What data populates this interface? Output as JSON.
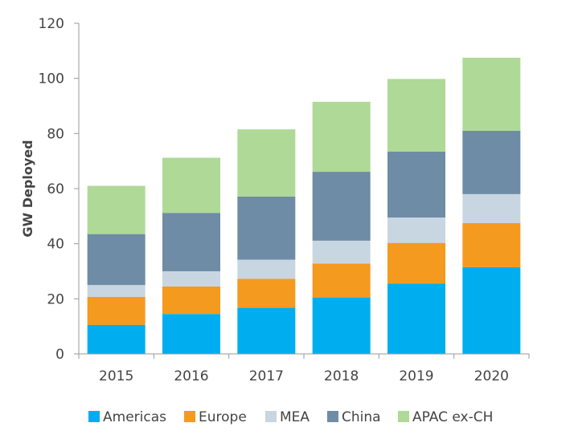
{
  "chart_data": {
    "type": "bar",
    "stacked": true,
    "ylabel": "GW Deployed",
    "xlabel": "",
    "ylim": [
      0,
      120
    ],
    "yticks": [
      0,
      20,
      40,
      60,
      80,
      100,
      120
    ],
    "grid": false,
    "legend_position": "bottom",
    "categories": [
      "2015",
      "2016",
      "2017",
      "2018",
      "2019",
      "2020"
    ],
    "series": [
      {
        "name": "Americas",
        "color": "#00aeef",
        "values": [
          10.5,
          14.5,
          16.8,
          20.5,
          25.5,
          31.5
        ]
      },
      {
        "name": "Europe",
        "color": "#f39a1f",
        "values": [
          10.2,
          10.0,
          10.5,
          12.3,
          14.8,
          16.0
        ]
      },
      {
        "name": "MEA",
        "color": "#c8d6e1",
        "values": [
          4.3,
          5.5,
          6.9,
          8.3,
          9.2,
          10.5
        ]
      },
      {
        "name": "China",
        "color": "#6e8ca5",
        "values": [
          18.5,
          21.2,
          22.9,
          25.0,
          23.9,
          23.0
        ]
      },
      {
        "name": "APAC ex-CH",
        "color": "#afd996",
        "values": [
          17.5,
          20.0,
          24.4,
          25.4,
          26.4,
          26.5
        ]
      }
    ]
  }
}
